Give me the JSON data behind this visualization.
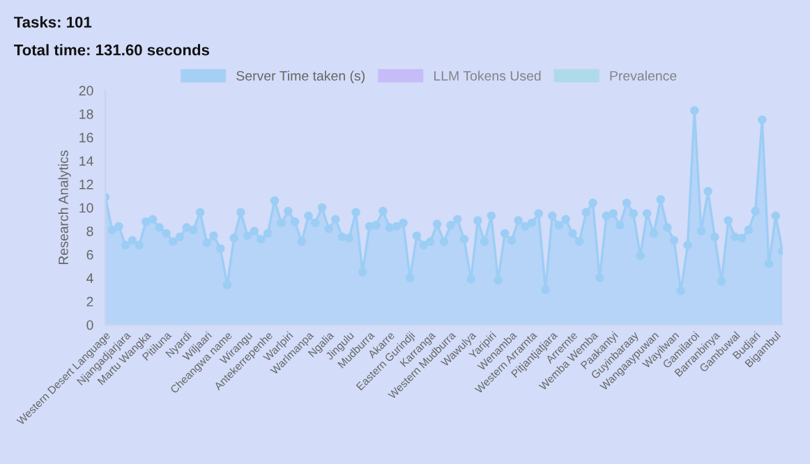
{
  "chart_data": {
    "type": "area",
    "title": "Tasks: 101",
    "subtitle": "Total time: 131.60 seconds",
    "ylabel": "Research Analytics",
    "categories": [
      "Western Desert Language",
      null,
      null,
      "Njangadjarjara",
      null,
      null,
      "Martu Wangka",
      null,
      null,
      "Pitiluna",
      null,
      null,
      "Nyardi",
      null,
      null,
      "Wiljaari",
      null,
      null,
      "Cheangwa name",
      null,
      null,
      "Wirangu",
      null,
      null,
      "Antekerrepenhe",
      null,
      null,
      "Warlpiri",
      null,
      null,
      "Warlmanpa",
      null,
      null,
      "Ngalia",
      null,
      null,
      "Jingulu",
      null,
      null,
      "Mudburra",
      null,
      null,
      "Akarre",
      null,
      null,
      "Eastern Gurindji",
      null,
      null,
      "Karranga",
      null,
      null,
      "Western Mudburra",
      null,
      null,
      "Wawulya",
      null,
      null,
      "Yaripiri",
      null,
      null,
      "Wenamba",
      null,
      null,
      "Western Arrarnta",
      null,
      null,
      "Pitjantjatjara",
      null,
      null,
      "Arrernte",
      null,
      null,
      "Wemba Wemba",
      null,
      null,
      "Paakantyi",
      null,
      null,
      "Guyinbaraay",
      null,
      null,
      "Wangaaypuwan",
      null,
      null,
      "Wayilwan",
      null,
      null,
      "Gamilaroi",
      null,
      null,
      "Barranbinya",
      null,
      null,
      "Gambuwal",
      null,
      null,
      "Budjari",
      null,
      null,
      "Bigambul",
      null
    ],
    "series": [
      {
        "name": "Server Time taken (s)",
        "color": "#9ccdf5",
        "values": [
          10.9,
          8.1,
          8.4,
          6.8,
          7.2,
          6.8,
          8.8,
          9.0,
          8.3,
          7.8,
          7.1,
          7.5,
          8.3,
          8.1,
          9.6,
          7.0,
          7.6,
          6.5,
          3.4,
          7.4,
          9.6,
          7.6,
          8.0,
          7.3,
          7.8,
          10.6,
          8.7,
          9.7,
          8.8,
          7.1,
          9.3,
          8.7,
          10.0,
          8.2,
          9.0,
          7.5,
          7.4,
          9.6,
          4.5,
          8.4,
          8.5,
          9.7,
          8.3,
          8.4,
          8.7,
          4.0,
          7.6,
          6.8,
          7.1,
          8.6,
          7.1,
          8.5,
          9.0,
          7.3,
          3.9,
          8.9,
          7.1,
          9.3,
          3.8,
          7.8,
          7.2,
          8.9,
          8.4,
          8.7,
          9.5,
          3.0,
          9.3,
          8.5,
          9.0,
          7.8,
          7.1,
          9.6,
          10.4,
          4.0,
          9.3,
          9.5,
          8.5,
          10.4,
          9.5,
          5.9,
          9.5,
          7.8,
          10.7,
          8.3,
          7.2,
          2.9,
          6.8,
          18.3,
          8.0,
          11.4,
          7.5,
          3.7,
          8.9,
          7.5,
          7.4,
          8.1,
          9.7,
          17.5,
          5.2,
          9.3,
          6.3
        ]
      },
      {
        "name": "LLM Tokens Used",
        "color": "#c4b5f7",
        "values": [
          null,
          null,
          null,
          null,
          null,
          null,
          null,
          null,
          null,
          null,
          null,
          null,
          null,
          null,
          null,
          null,
          null,
          null,
          null,
          null,
          null,
          null,
          null,
          null,
          null,
          null,
          null,
          null,
          null,
          null,
          null,
          null,
          null,
          null,
          null,
          null,
          null,
          null,
          null,
          null,
          null,
          null,
          null,
          null,
          null,
          null,
          null,
          null,
          null,
          null,
          null,
          null,
          null,
          null,
          null,
          null,
          null,
          null,
          null,
          null,
          null,
          null,
          null,
          null,
          null,
          null,
          null,
          null,
          null,
          null,
          null,
          null,
          null,
          null,
          null,
          null,
          null,
          null,
          null,
          null,
          null,
          null,
          null,
          null,
          null,
          null,
          null,
          null,
          null,
          null,
          null,
          null,
          null,
          null,
          null,
          null,
          null,
          null,
          null,
          null,
          null
        ]
      },
      {
        "name": "Prevalence",
        "color": "#a6dbe6",
        "values": [
          null,
          null,
          null,
          null,
          null,
          null,
          null,
          null,
          null,
          null,
          null,
          null,
          null,
          null,
          null,
          null,
          null,
          null,
          null,
          null,
          null,
          null,
          null,
          null,
          null,
          null,
          null,
          null,
          null,
          null,
          null,
          null,
          null,
          null,
          null,
          null,
          null,
          null,
          null,
          null,
          null,
          null,
          null,
          null,
          null,
          null,
          null,
          null,
          null,
          null,
          null,
          null,
          null,
          null,
          null,
          null,
          null,
          null,
          null,
          null,
          null,
          null,
          null,
          null,
          null,
          null,
          null,
          null,
          null,
          null,
          null,
          null,
          null,
          null,
          null,
          null,
          null,
          null,
          null,
          null,
          null,
          null,
          null,
          null,
          null,
          null,
          null,
          null,
          null,
          null,
          null,
          null,
          null,
          null,
          null,
          null,
          null,
          null,
          null,
          null,
          null
        ]
      }
    ],
    "ylim": [
      0,
      20
    ],
    "yticks": [
      0,
      2,
      4,
      6,
      8,
      10,
      12,
      14,
      16,
      18,
      20
    ],
    "grid": false,
    "legend": "top",
    "marker": "circle",
    "line_style": "solid"
  }
}
